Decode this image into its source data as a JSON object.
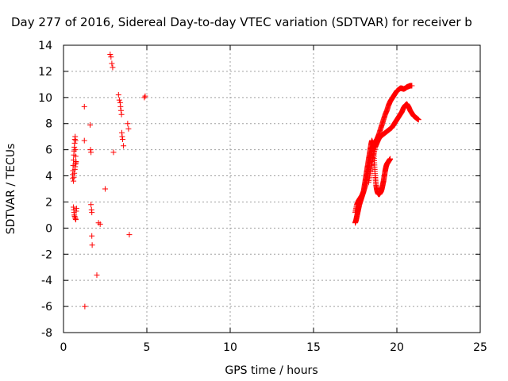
{
  "chart_data": {
    "type": "scatter",
    "title": "Day 277 of 2016, Sidereal Day-to-day VTEC variation (SDTVAR) for receiver b",
    "xlabel": "GPS time / hours",
    "ylabel": "SDTVAR / TECUs",
    "xlim": [
      0,
      25
    ],
    "ylim": [
      -8,
      14
    ],
    "xticks": [
      "0",
      "5",
      "10",
      "15",
      "20",
      "25"
    ],
    "yticks": [
      "-8",
      "-6",
      "-4",
      "-2",
      "0",
      "2",
      "4",
      "6",
      "8",
      "10",
      "12",
      "14"
    ],
    "grid": true,
    "marker": "plus",
    "marker_color": "#ff0000",
    "series": [
      {
        "x": [
          0.55,
          0.55,
          0.57,
          0.58,
          0.6,
          0.62,
          0.63,
          0.65,
          0.67,
          0.68,
          0.7,
          0.72,
          0.72,
          0.73,
          0.75,
          0.6,
          0.62,
          0.63,
          0.65,
          0.67,
          0.7,
          0.72,
          0.74,
          0.76,
          0.78,
          0.6,
          0.62,
          0.65,
          0.68,
          0.7,
          0.72,
          0.75,
          1.25,
          1.25,
          1.28,
          1.6,
          1.62,
          1.65,
          1.65,
          1.68,
          1.7,
          1.7,
          1.72,
          2.0,
          2.1,
          2.2,
          2.5,
          2.8,
          2.85,
          2.9,
          2.95,
          3.0,
          3.3,
          3.35,
          3.4,
          3.42,
          3.45,
          3.48,
          3.5,
          3.52,
          3.55,
          3.6,
          3.85,
          3.9,
          3.95,
          4.85,
          4.9
        ],
        "y": [
          3.8,
          4.1,
          4.4,
          4.8,
          5.2,
          5.6,
          5.9,
          6.2,
          6.5,
          6.8,
          7.0,
          6.7,
          6.0,
          5.5,
          5.0,
          1.6,
          1.4,
          1.2,
          1.0,
          0.9,
          0.8,
          0.7,
          0.65,
          1.3,
          1.5,
          3.6,
          3.9,
          4.2,
          4.5,
          4.7,
          4.9,
          5.1,
          9.3,
          6.7,
          -6.0,
          7.9,
          6.0,
          5.8,
          1.8,
          1.4,
          1.2,
          -0.6,
          -1.3,
          -3.6,
          0.4,
          0.3,
          3.0,
          13.3,
          13.1,
          12.6,
          12.3,
          5.8,
          10.2,
          9.8,
          9.6,
          9.3,
          9.0,
          8.7,
          7.3,
          7.0,
          6.8,
          6.3,
          8.0,
          7.6,
          -0.5,
          10.0,
          10.1
        ],
        "curves": [
          {
            "x": [
              17.5,
              17.6,
              17.7,
              17.8,
              17.9,
              18.0,
              18.1,
              18.2,
              18.3,
              18.4,
              18.5,
              18.6,
              18.7,
              18.8,
              18.9,
              19.0,
              19.1,
              19.2,
              19.3,
              19.4,
              19.5,
              19.6,
              19.7,
              19.8,
              19.9,
              20.0,
              20.1,
              20.2,
              20.3,
              20.4,
              20.5,
              20.6,
              20.7,
              20.8,
              20.9
            ],
            "y": [
              1.2,
              1.8,
              2.1,
              2.3,
              2.5,
              2.8,
              3.2,
              3.8,
              4.5,
              5.3,
              5.8,
              6.3,
              6.6,
              6.8,
              7.1,
              7.5,
              7.9,
              8.3,
              8.7,
              9.0,
              9.4,
              9.7,
              9.9,
              10.1,
              10.3,
              10.5,
              10.6,
              10.7,
              10.7,
              10.65,
              10.7,
              10.8,
              10.85,
              10.9,
              10.9
            ]
          },
          {
            "x": [
              17.5,
              17.55,
              17.6,
              17.65,
              17.7,
              17.75,
              17.8,
              17.85,
              17.9,
              17.95,
              18.0,
              18.05,
              18.1,
              18.15,
              18.2,
              18.25,
              18.3,
              18.35,
              18.4,
              18.45,
              18.5,
              18.55,
              18.6,
              18.65,
              18.7,
              18.75,
              18.8,
              18.85,
              18.9,
              18.95,
              19.0,
              19.05,
              19.1,
              19.15,
              19.2,
              19.25,
              19.3,
              19.35,
              19.4,
              19.45,
              19.5,
              19.55,
              19.6
            ],
            "y": [
              0.4,
              0.6,
              0.9,
              1.2,
              1.5,
              1.8,
              2.0,
              2.2,
              2.4,
              2.6,
              2.8,
              3.2,
              3.6,
              4.0,
              4.4,
              4.8,
              5.2,
              5.6,
              6.0,
              6.4,
              6.7,
              6.5,
              6.0,
              5.0,
              4.0,
              3.3,
              2.9,
              2.7,
              2.6,
              2.6,
              2.7,
              2.8,
              3.0,
              3.3,
              3.6,
              4.0,
              4.4,
              4.7,
              4.9,
              5.0,
              5.1,
              5.2,
              5.3
            ]
          },
          {
            "x": [
              18.3,
              18.4,
              18.5,
              18.6,
              18.7,
              18.8,
              18.9,
              19.0,
              19.1,
              19.2,
              19.3,
              19.4,
              19.5,
              19.6,
              19.7,
              19.8,
              19.9,
              20.0,
              20.1,
              20.2,
              20.3,
              20.4,
              20.5,
              20.6,
              20.7,
              20.8,
              20.9,
              21.0,
              21.1,
              21.2,
              21.3
            ],
            "y": [
              3.5,
              4.3,
              5.0,
              5.6,
              6.2,
              6.5,
              6.8,
              7.0,
              7.1,
              7.2,
              7.3,
              7.4,
              7.5,
              7.6,
              7.7,
              7.9,
              8.1,
              8.3,
              8.5,
              8.7,
              8.9,
              9.2,
              9.4,
              9.5,
              9.3,
              9.0,
              8.8,
              8.6,
              8.5,
              8.4,
              8.3
            ]
          }
        ]
      }
    ]
  }
}
